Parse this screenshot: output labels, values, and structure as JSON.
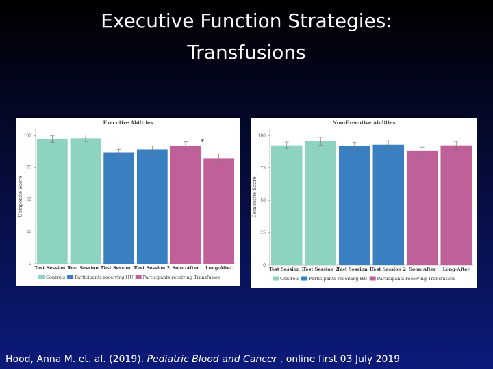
{
  "slide": {
    "title_lines": [
      "Executive Function Strategies:",
      "Transfusions"
    ],
    "citation": [
      "Hood, Anna M. et. al. (2019). ",
      "Pediatric Blood and Cancer",
      " , online first 03 July 2019"
    ]
  },
  "chart_data": [
    {
      "type": "bar",
      "title": "Executive Abilities",
      "y_label": "Composite Score",
      "categories": [
        "Test Session 1",
        "Test Session 2",
        "Test Session 1",
        "Test Session 2",
        "Soon-After",
        "Long-After"
      ],
      "series": [
        {
          "name": "Controls",
          "color": "#8dd3c0",
          "values": [
            97.3,
            97.9,
            null,
            null,
            null,
            null
          ],
          "errors": [
            2.5,
            2.5,
            null,
            null,
            null,
            null
          ]
        },
        {
          "name": "Participants receiving HU",
          "color": "#3a7fc0",
          "values": [
            null,
            null,
            86.6,
            89.3,
            null,
            null
          ],
          "errors": [
            null,
            null,
            2.8,
            2.8,
            null,
            null
          ]
        },
        {
          "name": "Participants receiving Transfusion",
          "color": "#c06098",
          "values": [
            null,
            null,
            null,
            null,
            92,
            82.4
          ],
          "errors": [
            null,
            null,
            null,
            null,
            3,
            3
          ]
        }
      ],
      "annotation": "*",
      "ylim": [
        0,
        105
      ],
      "yticks": [
        0,
        25,
        50,
        75,
        100
      ]
    },
    {
      "type": "bar",
      "title": "Non-Executive Abilities",
      "y_label": "Composite Score",
      "categories": [
        "Test Session 1",
        "Test Session 2",
        "Test Session 1",
        "Test Session 2",
        "Soon-After",
        "Long-After"
      ],
      "series": [
        {
          "name": "Controls",
          "color": "#8dd3c0",
          "values": [
            92.5,
            95.7,
            null,
            null,
            null,
            null
          ],
          "errors": [
            2.5,
            3,
            null,
            null,
            null,
            null
          ]
        },
        {
          "name": "Participants receiving HU",
          "color": "#3a7fc0",
          "values": [
            null,
            null,
            92,
            93,
            null,
            null
          ],
          "errors": [
            null,
            null,
            2.8,
            3,
            null,
            null
          ]
        },
        {
          "name": "Participants receiving Transfusion",
          "color": "#c06098",
          "values": [
            null,
            null,
            null,
            null,
            88.2,
            92.5
          ],
          "errors": [
            null,
            null,
            null,
            null,
            3,
            3
          ]
        }
      ],
      "ylim": [
        0,
        105
      ],
      "yticks": [
        0,
        25,
        50,
        75,
        100
      ]
    }
  ]
}
